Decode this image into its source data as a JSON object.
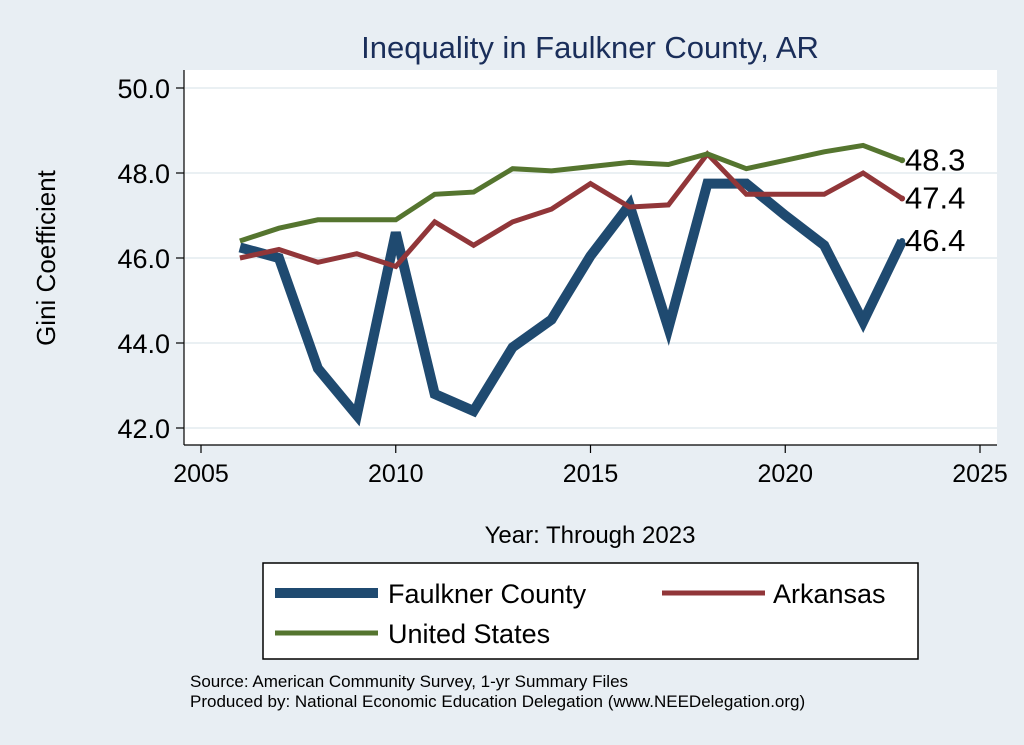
{
  "chart_data": {
    "type": "line",
    "title": "Inequality in Faulkner County, AR",
    "xlabel": "Year: Through 2023",
    "ylabel": "Gini Coefficient",
    "xlim": [
      2005,
      2025
    ],
    "ylim": [
      42.0,
      50.0
    ],
    "x_ticks": [
      "2005",
      "2010",
      "2015",
      "2020",
      "2025"
    ],
    "y_ticks": [
      "42.0",
      "44.0",
      "46.0",
      "48.0",
      "50.0"
    ],
    "grid": true,
    "legend": "bottom",
    "x": [
      2006,
      2007,
      2008,
      2009,
      2010,
      2011,
      2012,
      2013,
      2014,
      2015,
      2016,
      2017,
      2018,
      2019,
      2020,
      2021,
      2022,
      2023
    ],
    "series": [
      {
        "name": "Faulkner County",
        "color": "#1f4a70",
        "values": [
          46.25,
          46.0,
          43.4,
          42.3,
          46.6,
          42.8,
          42.4,
          43.9,
          44.55,
          46.05,
          47.25,
          44.35,
          47.75,
          47.75,
          47.0,
          46.3,
          44.5,
          46.4
        ]
      },
      {
        "name": "Arkansas",
        "color": "#913639",
        "values": [
          46.0,
          46.2,
          45.9,
          46.1,
          45.8,
          46.85,
          46.3,
          46.85,
          47.15,
          47.75,
          47.2,
          47.25,
          48.45,
          47.5,
          47.5,
          47.5,
          48.0,
          47.4
        ]
      },
      {
        "name": "United States",
        "color": "#55752f",
        "values": [
          46.4,
          46.7,
          46.9,
          46.9,
          46.9,
          47.5,
          47.55,
          48.1,
          48.05,
          48.15,
          48.25,
          48.2,
          48.45,
          48.1,
          48.3,
          48.5,
          48.65,
          48.3
        ]
      }
    ],
    "end_labels": [
      {
        "series": "United States",
        "text": "48.3"
      },
      {
        "series": "Arkansas",
        "text": "47.4"
      },
      {
        "series": "Faulkner County",
        "text": "46.4"
      }
    ]
  },
  "source_lines": [
    "Source: American Community Survey, 1-yr Summary Files",
    "Produced by: National Economic Education Delegation (www.NEEDelegation.org)"
  ]
}
